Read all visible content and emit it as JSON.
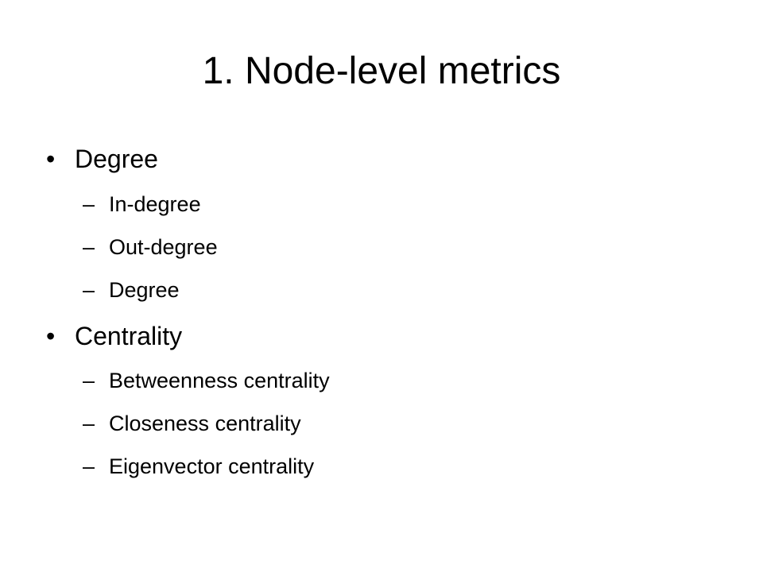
{
  "slide": {
    "title": "1. Node-level metrics",
    "bullets": [
      {
        "marker": "•",
        "label": "Degree",
        "sub_marker": "–",
        "sub": [
          "In-degree",
          "Out-degree",
          "Degree"
        ]
      },
      {
        "marker": "•",
        "label": "Centrality",
        "sub_marker": "–",
        "sub": [
          "Betweenness centrality",
          "Closeness centrality",
          "Eigenvector centrality"
        ]
      }
    ]
  }
}
